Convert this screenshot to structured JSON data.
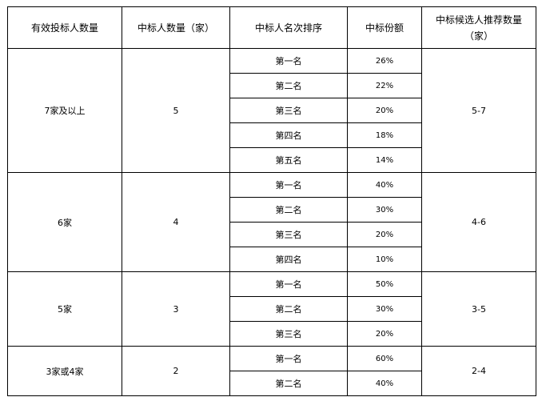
{
  "headers": [
    "有效投标人数量",
    "中标人数量（家）",
    "中标人名次排序",
    "中标份额",
    "中标候选人推荐数量（家）"
  ],
  "groups": [
    {
      "bidders": "7家及以上",
      "winners": "5",
      "recommend": "5-7",
      "ranks": [
        {
          "rank": "第一名",
          "share": "26%"
        },
        {
          "rank": "第二名",
          "share": "22%"
        },
        {
          "rank": "第三名",
          "share": "20%"
        },
        {
          "rank": "第四名",
          "share": "18%"
        },
        {
          "rank": "第五名",
          "share": "14%"
        }
      ]
    },
    {
      "bidders": "6家",
      "winners": "4",
      "recommend": "4-6",
      "ranks": [
        {
          "rank": "第一名",
          "share": "40%"
        },
        {
          "rank": "第二名",
          "share": "30%"
        },
        {
          "rank": "第三名",
          "share": "20%"
        },
        {
          "rank": "第四名",
          "share": "10%"
        }
      ]
    },
    {
      "bidders": "5家",
      "winners": "3",
      "recommend": "3-5",
      "ranks": [
        {
          "rank": "第一名",
          "share": "50%"
        },
        {
          "rank": "第二名",
          "share": "30%"
        },
        {
          "rank": "第三名",
          "share": "20%"
        }
      ]
    },
    {
      "bidders": "3家或4家",
      "winners": "2",
      "recommend": "2-4",
      "ranks": [
        {
          "rank": "第一名",
          "share": "60%"
        },
        {
          "rank": "第二名",
          "share": "40%"
        }
      ]
    }
  ]
}
